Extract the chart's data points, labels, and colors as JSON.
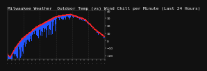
{
  "title": "Milwaukee Weather  Outdoor Temp (vs) Wind Chill per Minute (Last 24 Hours)",
  "bg_color": "#111111",
  "plot_bg_color": "#111111",
  "text_color": "#ffffff",
  "grid_color": "#555555",
  "red_line_color": "#ff2222",
  "blue_bar_color": "#2255ff",
  "n_points": 1440,
  "y_min": -25,
  "y_max": 40,
  "yticks": [
    -20,
    -10,
    0,
    10,
    20,
    30,
    40
  ],
  "num_vertical_grids": 6,
  "title_fontsize": 4.5,
  "tick_fontsize": 3.2
}
